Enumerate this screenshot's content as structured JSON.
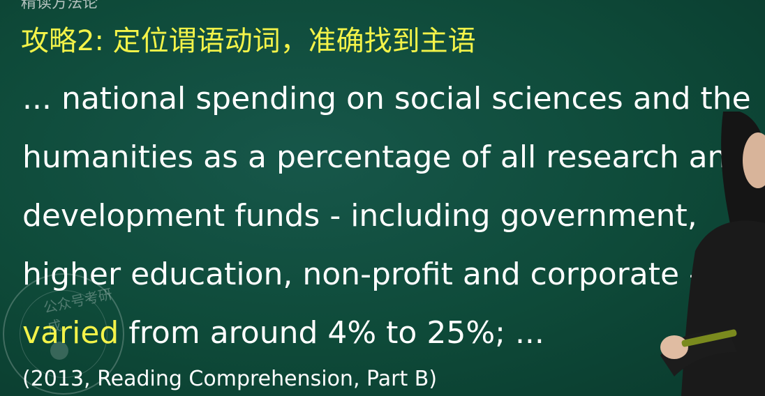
{
  "top_fragment": "精读方法论",
  "heading": "攻略2: 定位谓语动词，准确找到主语",
  "passage": {
    "lines": [
      "... national spending on social sciences and the",
      "humanities as a percentage of all research and",
      "development funds - including government,",
      "higher education, non-profit and corporate -"
    ],
    "last_line_highlight": "varied",
    "last_line_rest": " from around 4% to 25%; ..."
  },
  "source": "(2013, Reading Comprehension, Part B)",
  "watermark_text": "公众号考研成",
  "colors": {
    "board": "#0f4a38",
    "highlight": "#f3f349",
    "text": "#ffffff"
  }
}
